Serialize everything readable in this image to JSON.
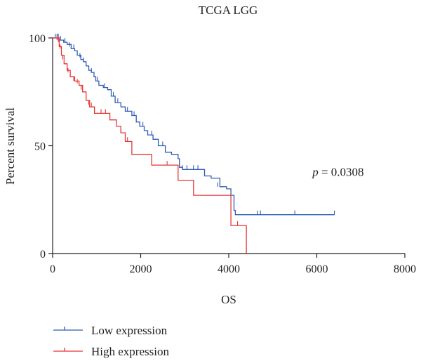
{
  "chart_data": {
    "type": "line",
    "title": "TCGA LGG",
    "xlabel": "OS",
    "ylabel": "Percent survival",
    "xlim": [
      0,
      8000
    ],
    "ylim": [
      0,
      100
    ],
    "xticks": [
      0,
      2000,
      4000,
      6000,
      8000
    ],
    "yticks": [
      0,
      50,
      100
    ],
    "grid": false,
    "legend": "bottom-left",
    "annotation": {
      "italic": "p",
      "text": " = 0.0308",
      "x": 5900,
      "y": 36
    },
    "series": [
      {
        "name": "Low expression",
        "color": "#2f5bb5",
        "steps": [
          [
            0,
            100
          ],
          [
            150,
            99
          ],
          [
            250,
            98
          ],
          [
            330,
            97
          ],
          [
            420,
            95
          ],
          [
            500,
            94
          ],
          [
            560,
            92
          ],
          [
            640,
            90
          ],
          [
            700,
            89
          ],
          [
            760,
            87
          ],
          [
            820,
            85
          ],
          [
            880,
            84
          ],
          [
            940,
            82
          ],
          [
            980,
            80
          ],
          [
            1050,
            78
          ],
          [
            1150,
            77
          ],
          [
            1250,
            76
          ],
          [
            1330,
            73
          ],
          [
            1420,
            70
          ],
          [
            1550,
            68
          ],
          [
            1650,
            66
          ],
          [
            1800,
            64
          ],
          [
            1900,
            61
          ],
          [
            1980,
            59
          ],
          [
            2080,
            57
          ],
          [
            2160,
            55
          ],
          [
            2280,
            53
          ],
          [
            2400,
            50
          ],
          [
            2560,
            47
          ],
          [
            2700,
            46
          ],
          [
            2850,
            44
          ],
          [
            2880,
            40
          ],
          [
            2950,
            39
          ],
          [
            3450,
            36
          ],
          [
            3600,
            35
          ],
          [
            3800,
            31
          ],
          [
            3950,
            30
          ],
          [
            4050,
            27
          ],
          [
            4120,
            20
          ],
          [
            4150,
            18
          ]
        ],
        "end_x": 6400,
        "censors": [
          [
            60,
            100
          ],
          [
            100,
            100
          ],
          [
            130,
            100
          ],
          [
            180,
            99
          ],
          [
            280,
            98
          ],
          [
            380,
            96
          ],
          [
            480,
            95
          ],
          [
            620,
            91
          ],
          [
            700,
            89
          ],
          [
            880,
            84
          ],
          [
            1020,
            80
          ],
          [
            1180,
            77
          ],
          [
            1380,
            73
          ],
          [
            1480,
            70
          ],
          [
            1700,
            66
          ],
          [
            1850,
            64
          ],
          [
            2050,
            59
          ],
          [
            2250,
            55
          ],
          [
            2500,
            50
          ],
          [
            2950,
            39
          ],
          [
            3050,
            39
          ],
          [
            3200,
            39
          ],
          [
            3300,
            39
          ],
          [
            3750,
            31
          ],
          [
            4650,
            18
          ],
          [
            4720,
            18
          ],
          [
            5500,
            18
          ],
          [
            6400,
            18
          ]
        ]
      },
      {
        "name": "High expression",
        "color": "#e63535",
        "steps": [
          [
            0,
            100
          ],
          [
            150,
            96
          ],
          [
            200,
            92
          ],
          [
            260,
            88
          ],
          [
            330,
            85
          ],
          [
            400,
            82
          ],
          [
            500,
            80
          ],
          [
            600,
            78
          ],
          [
            680,
            75
          ],
          [
            760,
            71
          ],
          [
            840,
            68
          ],
          [
            950,
            65
          ],
          [
            1300,
            62
          ],
          [
            1450,
            59
          ],
          [
            1550,
            56
          ],
          [
            1650,
            52
          ],
          [
            1800,
            46
          ],
          [
            2250,
            41
          ],
          [
            2850,
            34
          ],
          [
            3200,
            27
          ],
          [
            4050,
            13
          ],
          [
            4200,
            13
          ],
          [
            4400,
            0
          ]
        ],
        "end_x": 4400,
        "censors": [
          [
            100,
            99
          ],
          [
            130,
            98
          ],
          [
            170,
            95
          ],
          [
            230,
            90
          ],
          [
            350,
            84
          ],
          [
            480,
            80
          ],
          [
            560,
            79
          ],
          [
            650,
            76
          ],
          [
            820,
            69
          ],
          [
            880,
            68
          ],
          [
            950,
            66
          ],
          [
            1100,
            65
          ],
          [
            1200,
            65
          ],
          [
            1550,
            56
          ],
          [
            1700,
            52
          ],
          [
            2600,
            41
          ],
          [
            4200,
            13
          ]
        ]
      }
    ]
  }
}
